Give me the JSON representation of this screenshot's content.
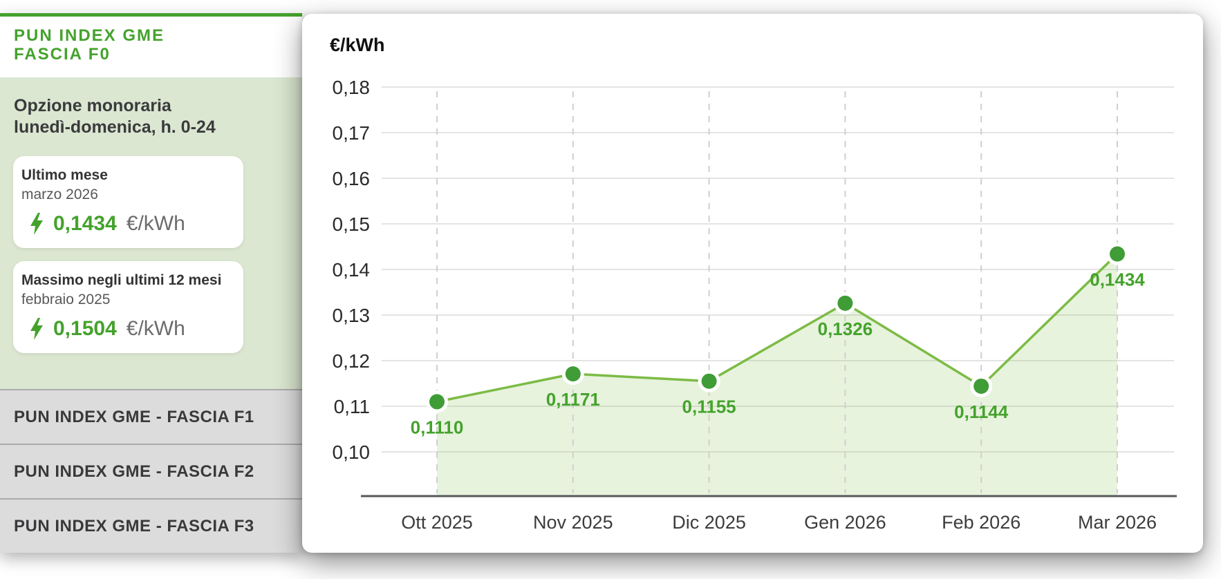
{
  "colors": {
    "accent_green": "#44a22c",
    "line_green": "#7cbb45",
    "marker_green": "#3f9c36",
    "area_fill": "rgba(124,187,69,0.18)",
    "sidebar_bg": "#dbe7d1",
    "list_item_bg": "#dcdcdc",
    "text_dark": "#3a3a3c",
    "text_gray": "#58585a",
    "grid_solid": "#e4e4e4",
    "grid_dashed": "#cfcfcf",
    "axis_line": "#56575b",
    "tick_text": "#2a2a2c",
    "month_text": "#3c3c3e"
  },
  "sidebar": {
    "title_line1": "PUN INDEX GME",
    "title_line2": "FASCIA F0",
    "subtitle_line1": "Opzione monoraria",
    "subtitle_line2": "lunedì-domenica, h. 0-24",
    "cards": [
      {
        "title": "Ultimo mese",
        "period": "marzo 2026",
        "value": "0,1434",
        "unit": "€/kWh"
      },
      {
        "title": "Massimo negli ultimi 12 mesi",
        "period": "febbraio 2025",
        "value": "0,1504",
        "unit": "€/kWh"
      }
    ],
    "links": [
      "PUN INDEX GME - FASCIA F1",
      "PUN INDEX GME - FASCIA F2",
      "PUN INDEX GME - FASCIA F3"
    ]
  },
  "chart_data": {
    "type": "area",
    "title": "PUN INDEX GME FASCIA F0",
    "ylabel": "€/kWh",
    "xlabel": "",
    "x": [
      "Ott 2025",
      "Nov 2025",
      "Dic 2025",
      "Gen 2026",
      "Feb 2026",
      "Mar 2026"
    ],
    "values": [
      0.111,
      0.1171,
      0.1155,
      0.1326,
      0.1144,
      0.1434
    ],
    "point_labels": [
      "0,1110",
      "0,1171",
      "0,1155",
      "0,1326",
      "0,1144",
      "0,1434"
    ],
    "ylim": [
      0.1,
      0.18
    ],
    "ytick_labels_top_to_bottom": [
      "0,18",
      "0,17",
      "0,16",
      "0,15",
      "0,14",
      "0,13",
      "0,12",
      "0,11",
      "0,10"
    ],
    "grid": {
      "horizontal": "solid",
      "vertical": "dashed"
    },
    "legend": "none"
  }
}
